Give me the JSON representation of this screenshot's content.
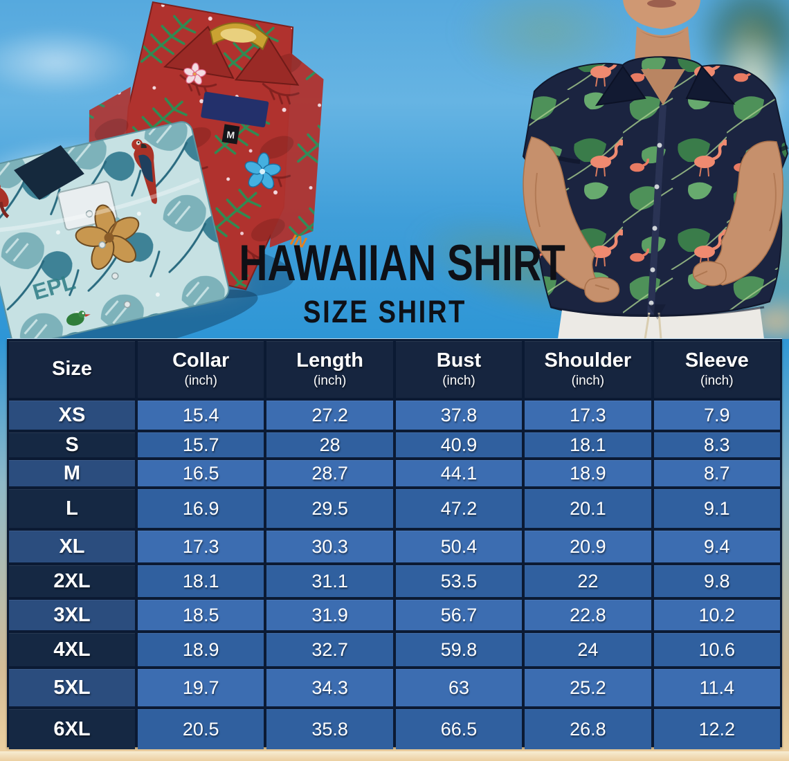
{
  "hero": {
    "title": "HAWAIIAN SHIRT",
    "subtitle": "SIZE SHIRT",
    "red_shirt_size_tag": "M",
    "teal_shirt_print_text": "EPL"
  },
  "table": {
    "columns": [
      {
        "label": "Size",
        "sub": ""
      },
      {
        "label": "Collar",
        "sub": "(inch)"
      },
      {
        "label": "Length",
        "sub": "(inch)"
      },
      {
        "label": "Bust",
        "sub": "(inch)"
      },
      {
        "label": "Shoulder",
        "sub": "(inch)"
      },
      {
        "label": "Sleeve",
        "sub": "(inch)"
      }
    ],
    "rows": [
      {
        "size": "XS",
        "values": [
          "15.4",
          "27.2",
          "37.8",
          "17.3",
          "7.9"
        ]
      },
      {
        "size": "S",
        "values": [
          "15.7",
          "28",
          "40.9",
          "18.1",
          "8.3"
        ]
      },
      {
        "size": "M",
        "values": [
          "16.5",
          "28.7",
          "44.1",
          "18.9",
          "8.7"
        ]
      },
      {
        "size": "L",
        "values": [
          "16.9",
          "29.5",
          "47.2",
          "20.1",
          "9.1"
        ]
      },
      {
        "size": "XL",
        "values": [
          "17.3",
          "30.3",
          "50.4",
          "20.9",
          "9.4"
        ]
      },
      {
        "size": "2XL",
        "values": [
          "18.1",
          "31.1",
          "53.5",
          "22",
          "9.8"
        ]
      },
      {
        "size": "3XL",
        "values": [
          "18.5",
          "31.9",
          "56.7",
          "22.8",
          "10.2"
        ]
      },
      {
        "size": "4XL",
        "values": [
          "18.9",
          "32.7",
          "59.8",
          "24",
          "10.6"
        ]
      },
      {
        "size": "5XL",
        "values": [
          "19.7",
          "34.3",
          "63",
          "25.2",
          "11.4"
        ]
      },
      {
        "size": "6XL",
        "values": [
          "20.5",
          "35.8",
          "66.5",
          "26.8",
          "12.2"
        ]
      }
    ]
  },
  "colors": {
    "header_bg": "#16253f",
    "row_size_navy": "#152843",
    "row_size_steel": "#2b4d7e",
    "row_data_bright": "#3c6db1",
    "row_data_dark": "#30609f",
    "grid_line": "#0b1a33",
    "sky_blue": "#2e96d6",
    "sand": "#eccfa0",
    "title_text": "#0e1016"
  }
}
